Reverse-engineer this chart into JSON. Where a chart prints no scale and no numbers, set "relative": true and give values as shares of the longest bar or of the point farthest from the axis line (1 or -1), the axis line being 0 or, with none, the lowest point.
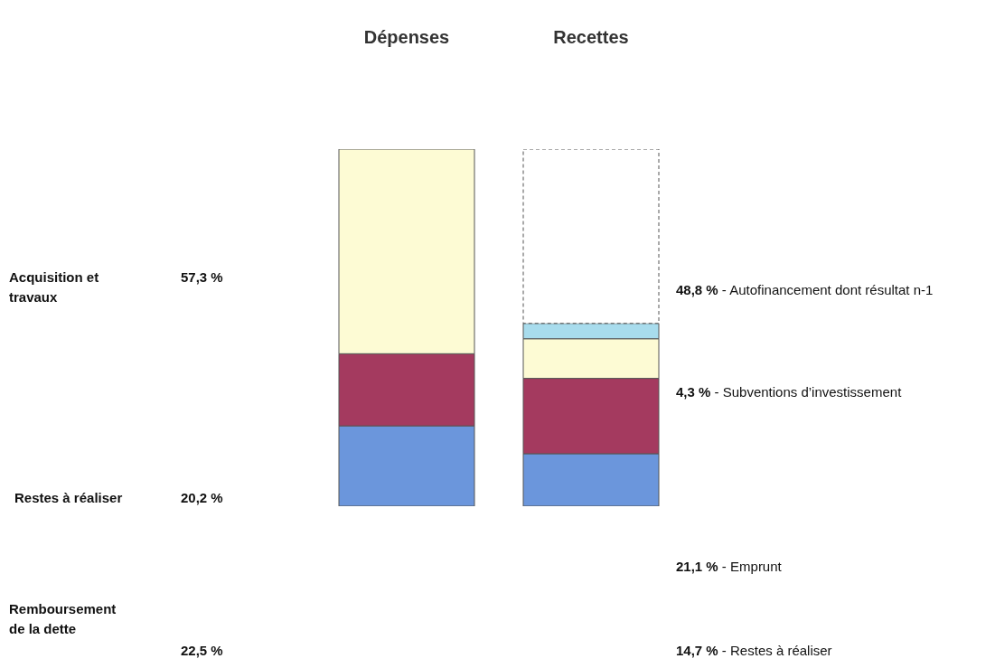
{
  "chart_data": {
    "type": "bar",
    "stacked": true,
    "relative": true,
    "categories": [
      "Dépenses",
      "Recettes"
    ],
    "series": [
      {
        "color": "#6b96dc",
        "values": [
          0.225,
          0.147
        ]
      },
      {
        "color": "#a43a5f",
        "values": [
          0.202,
          0.211
        ]
      },
      {
        "color": "#fdfbd4",
        "values": [
          0.573,
          0.111
        ]
      },
      {
        "color": "#a8dced",
        "values": [
          null,
          0.043
        ]
      },
      {
        "color": "#ffffff",
        "values": [
          null,
          0.488
        ]
      }
    ],
    "annotations": [
      "Acquisition et travaux",
      "57,3 %",
      "Restes à réaliser",
      "20,2 %",
      "Remboursement de la dette",
      "22,5 %",
      "48,8 % - Autofinancement dont résultat n-1",
      "4,3 % - Subventions d’investissement",
      "21,1 % - Emprunt",
      "14,7 % - Restes à réaliser"
    ]
  }
}
